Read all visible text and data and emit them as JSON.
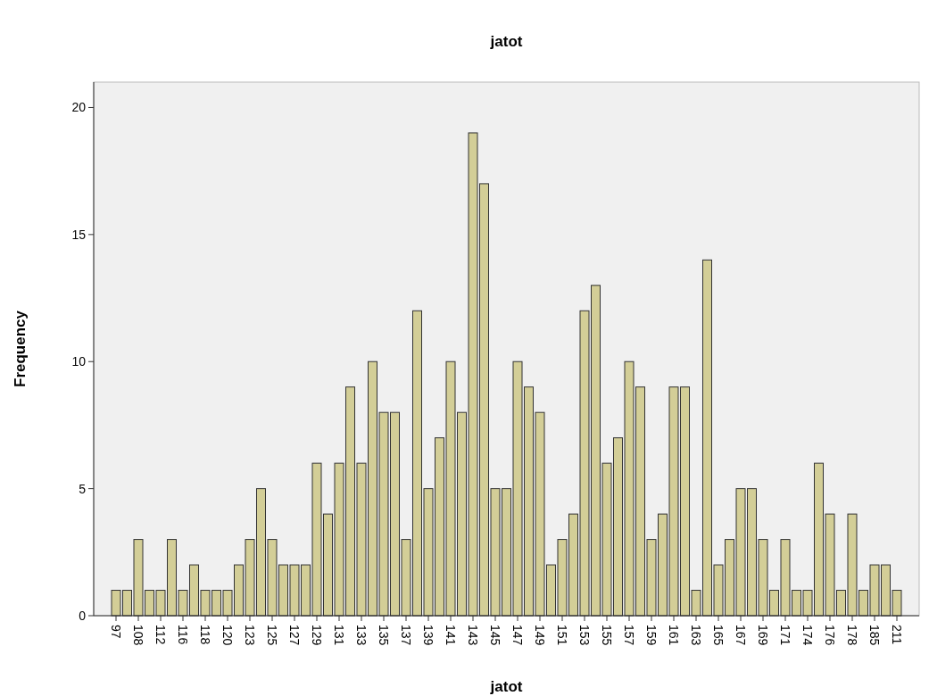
{
  "chart_data": {
    "type": "bar",
    "title": "jatot",
    "xlabel": "jatot",
    "ylabel": "Frequency",
    "categories": [
      "97",
      null,
      "108",
      null,
      "112",
      null,
      "116",
      null,
      "118",
      null,
      "120",
      null,
      "123",
      null,
      "125",
      null,
      "127",
      null,
      "129",
      null,
      "131",
      null,
      "133",
      null,
      "135",
      null,
      "137",
      null,
      "139",
      null,
      "141",
      null,
      "143",
      null,
      "145",
      null,
      "147",
      null,
      "149",
      null,
      "151",
      null,
      "153",
      null,
      "155",
      null,
      "157",
      null,
      "159",
      null,
      "161",
      null,
      "163",
      null,
      "165",
      null,
      "167",
      null,
      "169",
      null,
      "171",
      null,
      "174",
      null,
      "176",
      null,
      "178",
      null,
      "185",
      null,
      "211"
    ],
    "values": [
      1,
      1,
      3,
      1,
      1,
      3,
      1,
      2,
      1,
      1,
      1,
      2,
      3,
      5,
      3,
      2,
      2,
      2,
      6,
      4,
      6,
      9,
      6,
      10,
      8,
      8,
      3,
      12,
      5,
      7,
      10,
      8,
      19,
      17,
      5,
      5,
      10,
      9,
      8,
      2,
      3,
      4,
      12,
      13,
      6,
      7,
      10,
      9,
      3,
      4,
      9,
      9,
      1,
      14,
      2,
      3,
      5,
      5,
      3,
      1,
      3,
      1,
      1,
      6,
      4,
      1,
      4,
      1,
      2,
      2,
      1
    ],
    "color": "#d3ce97",
    "ylim": [
      0,
      21
    ],
    "yticks": [
      0,
      5,
      10,
      15,
      20
    ],
    "grid": false
  }
}
